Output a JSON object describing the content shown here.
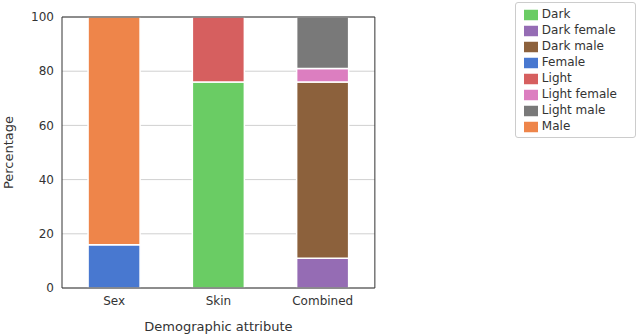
{
  "chart_data": {
    "type": "bar",
    "x_label": "Demographic attribute",
    "y_label": "Percentage",
    "categories": [
      "Sex",
      "Skin",
      "Combined"
    ],
    "series": [
      {
        "name": "Female",
        "color": "#4878d0",
        "values": [
          16,
          null,
          null
        ]
      },
      {
        "name": "Male",
        "color": "#ee854a",
        "values": [
          84,
          null,
          null
        ]
      },
      {
        "name": "Dark",
        "color": "#6acc64",
        "values": [
          null,
          76,
          null
        ]
      },
      {
        "name": "Light",
        "color": "#d65f5f",
        "values": [
          null,
          24,
          null
        ]
      },
      {
        "name": "Dark female",
        "color": "#956cb4",
        "values": [
          null,
          null,
          11
        ]
      },
      {
        "name": "Dark male",
        "color": "#8c613c",
        "values": [
          null,
          null,
          65
        ]
      },
      {
        "name": "Light female",
        "color": "#dc7ec0",
        "values": [
          null,
          null,
          5
        ]
      },
      {
        "name": "Light male",
        "color": "#797979",
        "values": [
          null,
          null,
          19
        ]
      }
    ],
    "ylim": [
      0,
      100
    ],
    "yticks": [
      0,
      20,
      40,
      60,
      80,
      100
    ],
    "grid": true,
    "stacked": true,
    "legend": "right"
  }
}
